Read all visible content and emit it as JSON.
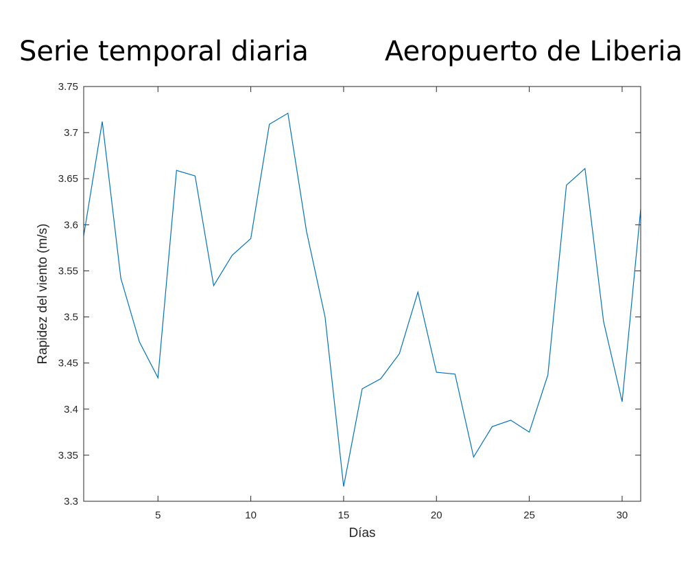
{
  "title_left": "Serie temporal diaria",
  "title_right": "Aeropuerto de Liberia",
  "chart_data": {
    "type": "line",
    "title": "",
    "xlabel": "Días",
    "ylabel": "Rapidez del viento (m/s)",
    "xlim": [
      1,
      31
    ],
    "ylim": [
      3.3,
      3.75
    ],
    "xticks": [
      5,
      10,
      15,
      20,
      25,
      30
    ],
    "xtick_labels": [
      "5",
      "10",
      "15",
      "20",
      "25",
      "30"
    ],
    "yticks": [
      3.3,
      3.35,
      3.4,
      3.45,
      3.5,
      3.55,
      3.6,
      3.65,
      3.7,
      3.75
    ],
    "ytick_labels": [
      "3.3",
      "3.35",
      "3.4",
      "3.45",
      "3.5",
      "3.55",
      "3.6",
      "3.65",
      "3.7",
      "3.75"
    ],
    "grid": false,
    "line_color": "#0072BD",
    "series": [
      {
        "x": [
          1,
          2,
          3,
          4,
          5,
          6,
          7,
          8,
          9,
          10,
          11,
          12,
          13,
          14,
          15,
          16,
          17,
          18,
          19,
          20,
          21,
          22,
          23,
          24,
          25,
          26,
          27,
          28,
          29,
          30,
          31
        ],
        "values": [
          3.588,
          3.712,
          3.542,
          3.473,
          3.434,
          3.659,
          3.653,
          3.534,
          3.567,
          3.585,
          3.709,
          3.721,
          3.593,
          3.5,
          3.316,
          3.422,
          3.433,
          3.46,
          3.527,
          3.44,
          3.438,
          3.348,
          3.381,
          3.388,
          3.375,
          3.437,
          3.643,
          3.661,
          3.495,
          3.408,
          3.617
        ]
      }
    ]
  }
}
